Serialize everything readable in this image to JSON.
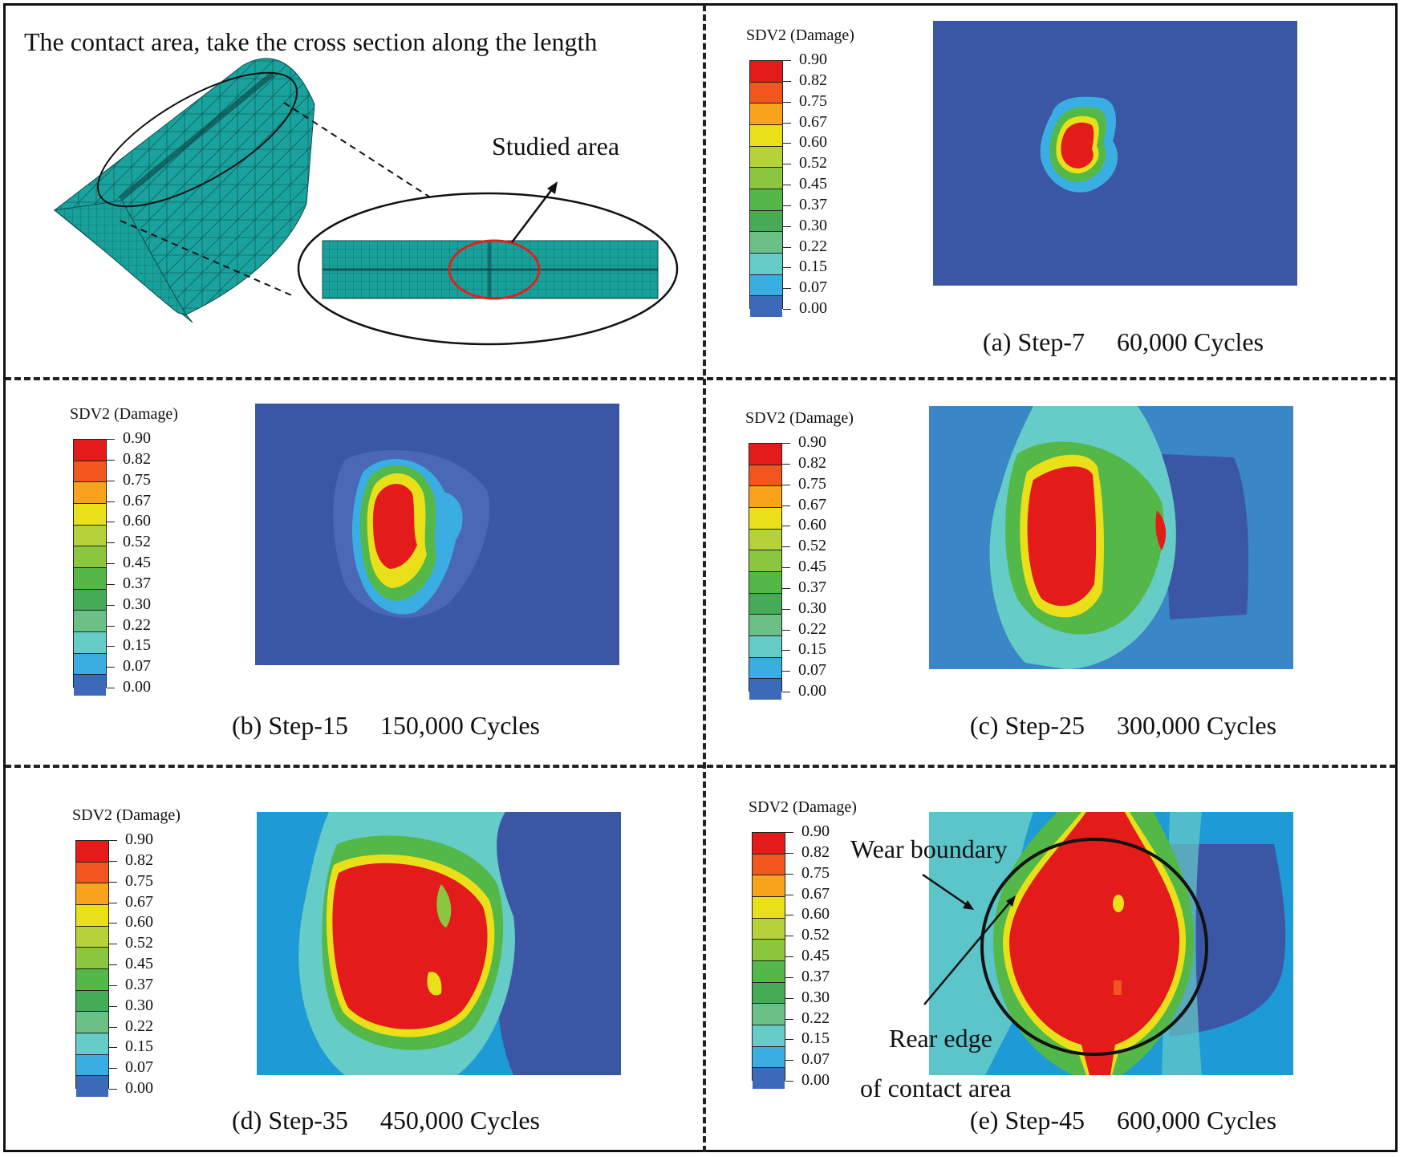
{
  "legend": {
    "title": "SDV2 (Damage)",
    "ticks": [
      "0.90",
      "0.82",
      "0.75",
      "0.67",
      "0.60",
      "0.52",
      "0.45",
      "0.37",
      "0.30",
      "0.22",
      "0.15",
      "0.07",
      "0.00"
    ],
    "colors": [
      "#e31b1b",
      "#f0561e",
      "#f9a21c",
      "#e9e01a",
      "#b6d23a",
      "#8cc63f",
      "#54b848",
      "#46ab57",
      "#6cbf86",
      "#66ccc8",
      "#3aaee2",
      "#3d6ab8",
      "#2e3c9c"
    ]
  },
  "overview": {
    "title": "The contact area, take the cross section along the length",
    "studied_label": "Studied area",
    "mesh_color": "#1a9e9a"
  },
  "panels": [
    {
      "caption": "(a) Step-7     60,000 Cycles"
    },
    {
      "caption": "(b) Step-15     150,000 Cycles"
    },
    {
      "caption": "(c) Step-25     300,000 Cycles"
    },
    {
      "caption": "(d) Step-35     450,000 Cycles"
    },
    {
      "caption": "(e) Step-45     600,000 Cycles"
    }
  ],
  "annotations": {
    "wear_boundary": "Wear boundary",
    "rear_edge_1": "Rear edge",
    "rear_edge_2": "of contact area"
  }
}
